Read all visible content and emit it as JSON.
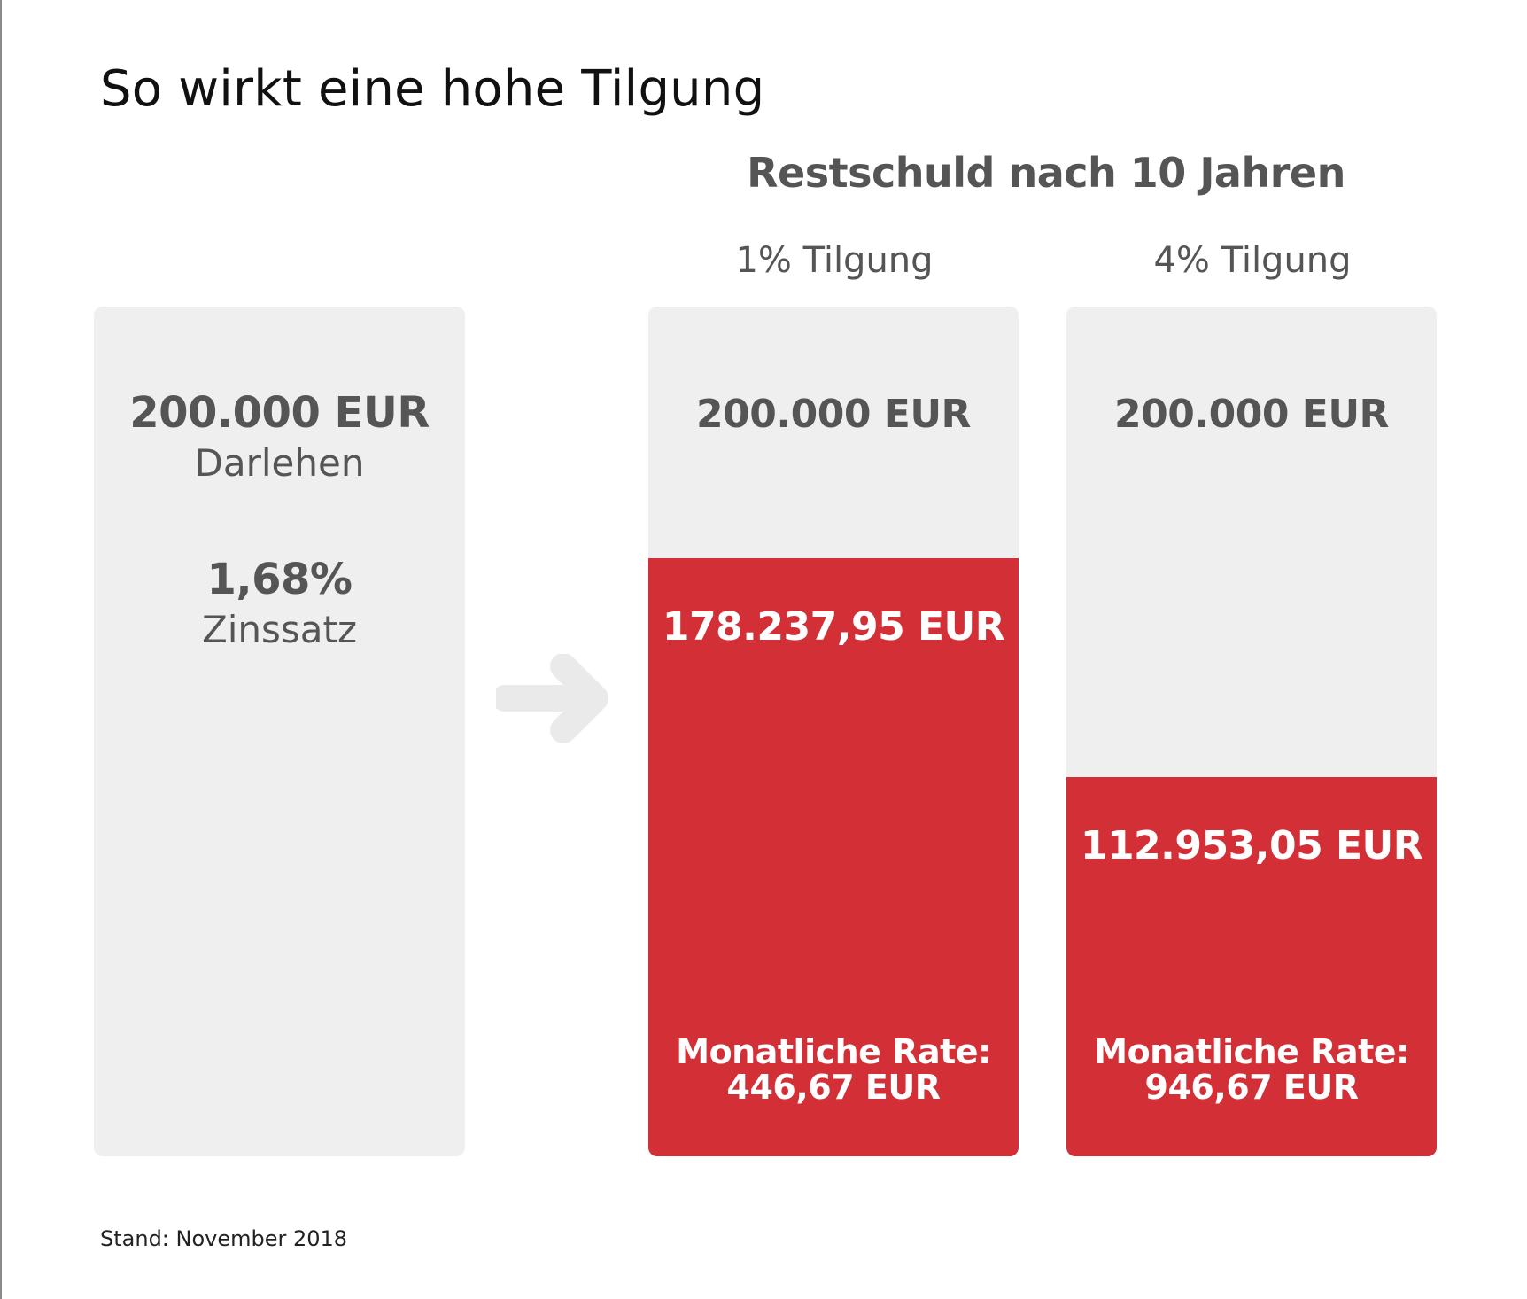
{
  "title": "So wirkt eine hohe Tilgung",
  "footnote": "Stand: November 2018",
  "colors": {
    "card_background": "#efefef",
    "remaining_debt": "#d32f36",
    "text_gray": "#555555",
    "arrow": "#eaeaea"
  },
  "icons": {
    "arrow": "arrow-right-icon"
  },
  "loan": {
    "amount": "200.000 EUR",
    "amount_label": "Darlehen",
    "rate": "1,68%",
    "rate_label": "Zinssatz"
  },
  "chart_data": {
    "type": "bar",
    "title": "Restschuld nach 10 Jahren",
    "categories": [
      "1% Tilgung",
      "4% Tilgung"
    ],
    "unit": "EUR",
    "loan_total": 200000,
    "loan_total_label": "200.000 EUR",
    "values": [
      178237.95,
      112953.05
    ],
    "value_labels": [
      "178.237,95 EUR",
      "112.953,05 EUR"
    ],
    "monthly_rate_label": "Monatliche Rate:",
    "monthly_rates": [
      446.67,
      946.67
    ],
    "monthly_rate_values": [
      "446,67 EUR",
      "946,67 EUR"
    ],
    "ylim": [
      0,
      200000
    ]
  }
}
